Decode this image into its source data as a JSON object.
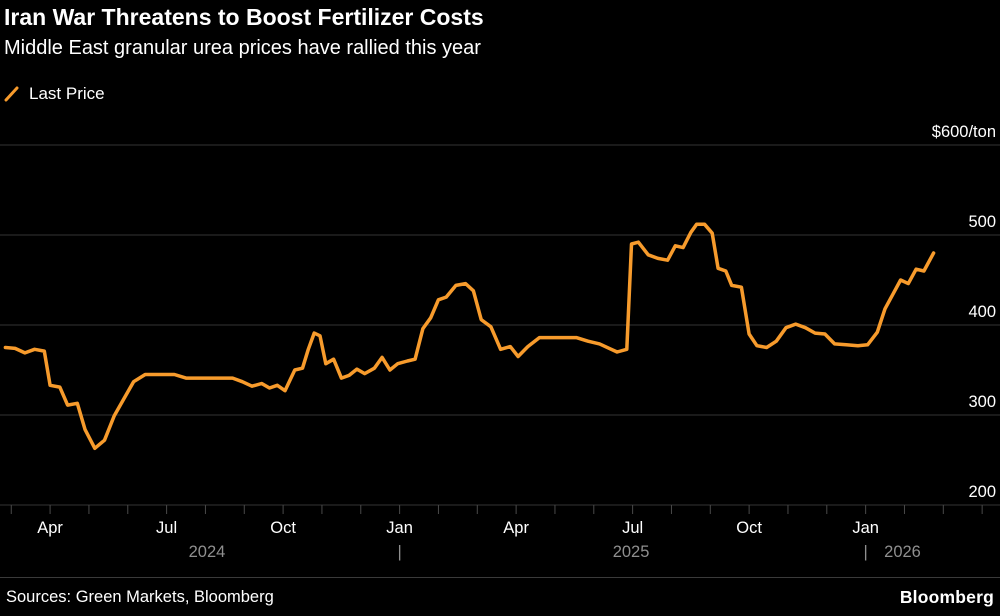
{
  "chart_data": {
    "type": "line",
    "title": "Iran War Threatens to Boost Fertilizer Costs",
    "subtitle": "Middle East granular urea prices have rallied this year",
    "legend": [
      {
        "label": "Last Price",
        "color": "#F79B2C"
      }
    ],
    "y_axis": {
      "top_label": "$600/ton",
      "ticks": [
        600,
        500,
        400,
        300,
        200
      ],
      "range": [
        200,
        600
      ],
      "grid": true
    },
    "x_axis": {
      "unit": "months since Jan 2024",
      "range": [
        1.71,
        27.46
      ],
      "major_ticks": [
        {
          "t": 3,
          "label": "Apr"
        },
        {
          "t": 6,
          "label": "Jul"
        },
        {
          "t": 9,
          "label": "Oct"
        },
        {
          "t": 12,
          "label": "Jan"
        },
        {
          "t": 15,
          "label": "Apr"
        },
        {
          "t": 18,
          "label": "Jul"
        },
        {
          "t": 21,
          "label": "Oct"
        },
        {
          "t": 24,
          "label": "Jan"
        }
      ],
      "minor_tick_months": [
        2,
        3,
        4,
        5,
        6,
        7,
        8,
        9,
        10,
        11,
        12,
        13,
        14,
        15,
        16,
        17,
        18,
        19,
        20,
        21,
        22,
        23,
        24,
        25,
        26,
        27
      ],
      "year_row": [
        {
          "t": 7.04,
          "label": "2024"
        },
        {
          "t": 12.0,
          "label": "|"
        },
        {
          "t": 17.96,
          "label": "2025"
        },
        {
          "t": 24.0,
          "label": "|"
        },
        {
          "t": 24.95,
          "label": "2026"
        }
      ]
    },
    "series": [
      {
        "name": "Last Price",
        "color": "#F79B2C",
        "points": [
          [
            1.85,
            375
          ],
          [
            2.1,
            374
          ],
          [
            2.35,
            369
          ],
          [
            2.6,
            373
          ],
          [
            2.85,
            371
          ],
          [
            3.0,
            333
          ],
          [
            3.25,
            331
          ],
          [
            3.45,
            311
          ],
          [
            3.7,
            313
          ],
          [
            3.9,
            284
          ],
          [
            4.15,
            263
          ],
          [
            4.4,
            272
          ],
          [
            4.65,
            299
          ],
          [
            4.9,
            318
          ],
          [
            5.15,
            337
          ],
          [
            5.45,
            345
          ],
          [
            6.2,
            345
          ],
          [
            6.5,
            341
          ],
          [
            7.7,
            341
          ],
          [
            7.95,
            337
          ],
          [
            8.2,
            332
          ],
          [
            8.45,
            335
          ],
          [
            8.65,
            330
          ],
          [
            8.85,
            333
          ],
          [
            9.05,
            327
          ],
          [
            9.3,
            350
          ],
          [
            9.5,
            352
          ],
          [
            9.65,
            373
          ],
          [
            9.8,
            391
          ],
          [
            9.95,
            388
          ],
          [
            10.1,
            357
          ],
          [
            10.3,
            362
          ],
          [
            10.5,
            341
          ],
          [
            10.7,
            344
          ],
          [
            10.9,
            351
          ],
          [
            11.1,
            346
          ],
          [
            11.35,
            352
          ],
          [
            11.55,
            364
          ],
          [
            11.75,
            350
          ],
          [
            11.95,
            357
          ],
          [
            12.2,
            360
          ],
          [
            12.4,
            362
          ],
          [
            12.6,
            396
          ],
          [
            12.8,
            408
          ],
          [
            13.0,
            428
          ],
          [
            13.2,
            431
          ],
          [
            13.45,
            444
          ],
          [
            13.7,
            446
          ],
          [
            13.9,
            438
          ],
          [
            14.1,
            406
          ],
          [
            14.35,
            398
          ],
          [
            14.6,
            373
          ],
          [
            14.85,
            376
          ],
          [
            15.05,
            365
          ],
          [
            15.3,
            376
          ],
          [
            15.6,
            386
          ],
          [
            16.55,
            386
          ],
          [
            16.85,
            382
          ],
          [
            17.15,
            379
          ],
          [
            17.4,
            374
          ],
          [
            17.6,
            370
          ],
          [
            17.85,
            373
          ],
          [
            17.97,
            490
          ],
          [
            18.15,
            492
          ],
          [
            18.4,
            478
          ],
          [
            18.65,
            474
          ],
          [
            18.9,
            472
          ],
          [
            19.1,
            488
          ],
          [
            19.3,
            486
          ],
          [
            19.5,
            503
          ],
          [
            19.65,
            512
          ],
          [
            19.85,
            512
          ],
          [
            20.05,
            502
          ],
          [
            20.2,
            463
          ],
          [
            20.4,
            460
          ],
          [
            20.55,
            444
          ],
          [
            20.8,
            442
          ],
          [
            21.0,
            390
          ],
          [
            21.2,
            377
          ],
          [
            21.45,
            375
          ],
          [
            21.7,
            382
          ],
          [
            21.95,
            397
          ],
          [
            22.2,
            401
          ],
          [
            22.45,
            397
          ],
          [
            22.7,
            391
          ],
          [
            22.95,
            390
          ],
          [
            23.2,
            379
          ],
          [
            23.5,
            378
          ],
          [
            23.8,
            377
          ],
          [
            24.05,
            378
          ],
          [
            24.3,
            392
          ],
          [
            24.5,
            418
          ],
          [
            24.7,
            434
          ],
          [
            24.9,
            450
          ],
          [
            25.1,
            446
          ],
          [
            25.3,
            462
          ],
          [
            25.5,
            460
          ],
          [
            25.75,
            480
          ]
        ]
      }
    ]
  },
  "footer": {
    "sources": "Sources: Green Markets, Bloomberg",
    "logo": "Bloomberg"
  },
  "colors": {
    "background": "#000000",
    "grid": "#333333",
    "tick": "#4a4a4a",
    "text": "#ffffff",
    "muted": "#8f8f8f",
    "accent": "#F79B2C"
  }
}
